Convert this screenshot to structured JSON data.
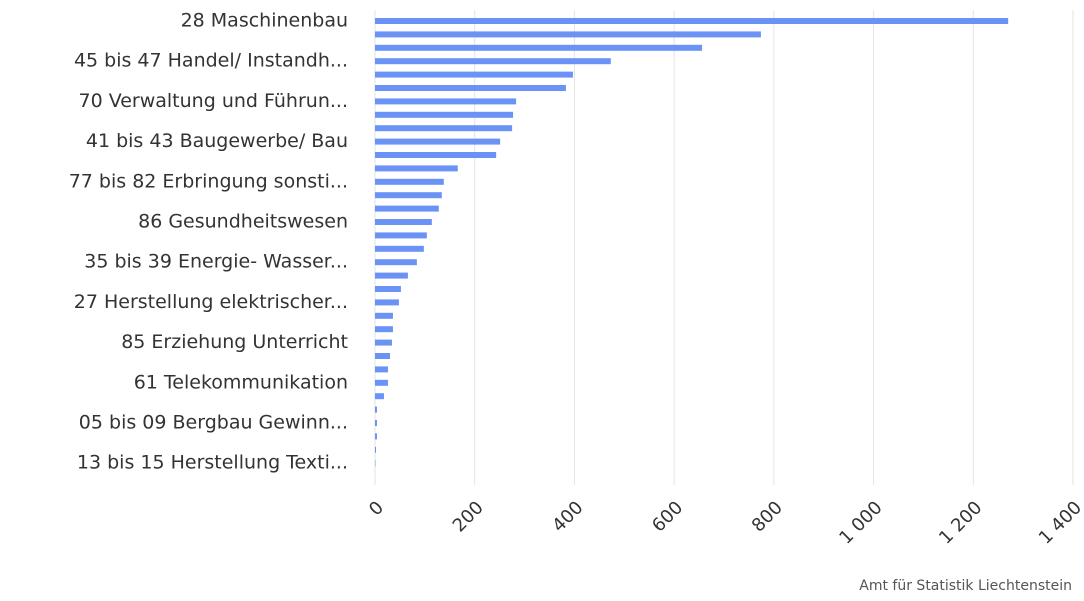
{
  "chart_data": {
    "type": "bar",
    "orientation": "horizontal",
    "categories": [
      "28 Maschinenbau",
      null,
      null,
      "45 bis 47 Handel/ Instandh...",
      null,
      null,
      "70 Verwaltung und Führun...",
      null,
      null,
      "41 bis 43 Baugewerbe/ Bau",
      null,
      null,
      "77 bis 82 Erbringung sonsti...",
      null,
      null,
      "86 Gesundheitswesen",
      null,
      null,
      "35 bis 39 Energie- Wasser...",
      null,
      null,
      "27 Herstellung elektrischer...",
      null,
      null,
      "85 Erziehung Unterricht",
      null,
      null,
      "61 Telekommunikation",
      null,
      null,
      "05 bis 09 Bergbau Gewinn...",
      null,
      null,
      "13 bis 15 Herstellung Texti..."
    ],
    "values": [
      1270,
      774,
      656,
      473,
      397,
      383,
      283,
      277,
      275,
      251,
      243,
      166,
      138,
      134,
      128,
      114,
      104,
      98,
      84,
      66,
      52,
      48,
      36,
      36,
      34,
      30,
      26,
      26,
      18,
      4,
      4,
      4,
      2,
      1
    ],
    "color": "#6b93f5",
    "xlim": [
      0,
      1400
    ],
    "xticks": [
      0,
      200,
      400,
      600,
      800,
      {
        "value": 1000,
        "label": "1 000"
      },
      {
        "value": 1200,
        "label": "1 200"
      },
      {
        "value": 1400,
        "label": "1 400"
      }
    ],
    "grid": true,
    "credit": "Amt für Statistik Liechtenstein"
  }
}
